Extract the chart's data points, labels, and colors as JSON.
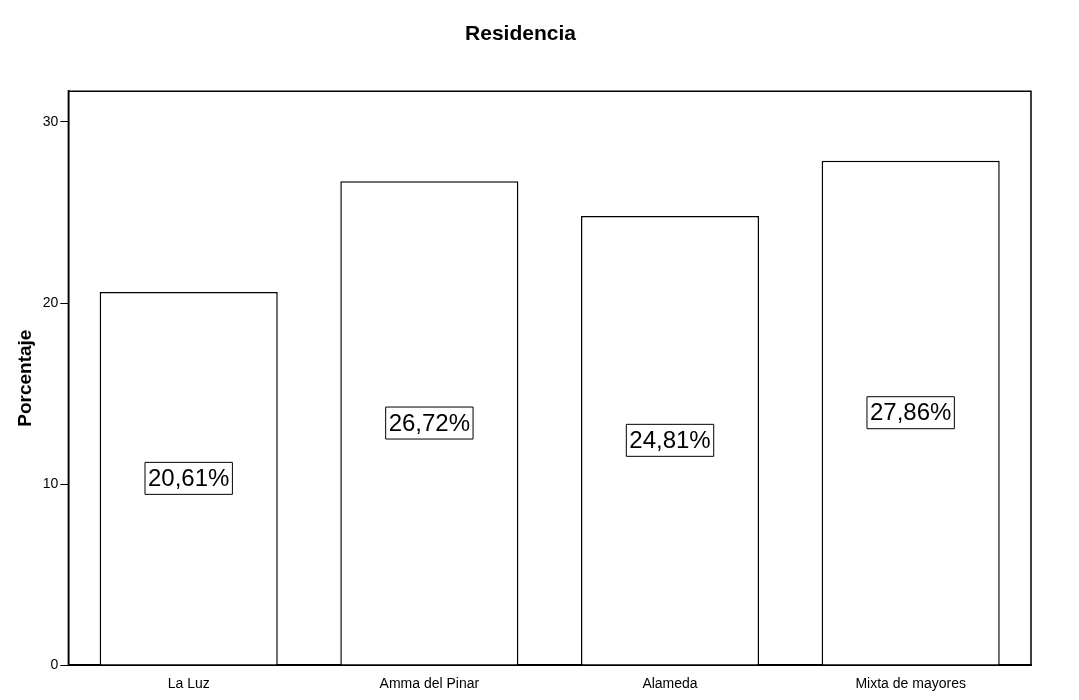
{
  "chart_data": {
    "type": "bar",
    "title": "Residencia",
    "ylabel": "Porcentaje",
    "categories": [
      "La Luz",
      "Amma del Pinar",
      "Alameda",
      "Mixta de mayores"
    ],
    "values": [
      20.61,
      26.72,
      24.81,
      27.86
    ],
    "value_labels": [
      "20,61%",
      "26,72%",
      "24,81%",
      "27,86%"
    ],
    "color": "#ffffff",
    "ylim": [
      0,
      31.7
    ],
    "yticks": [
      0,
      10,
      20,
      30
    ],
    "grid": false,
    "legend": false
  }
}
